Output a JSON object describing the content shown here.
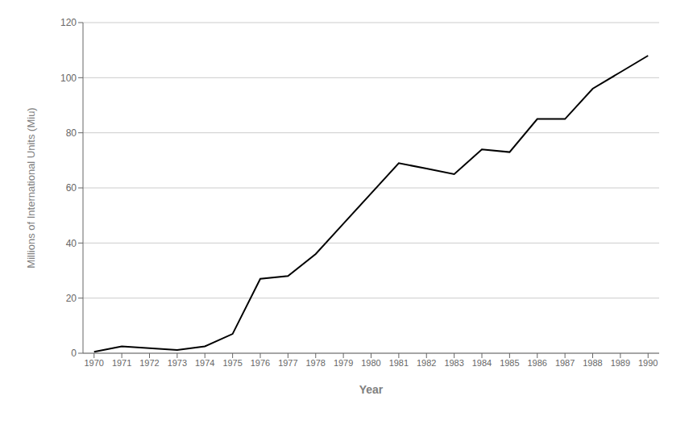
{
  "chart_data": {
    "type": "line",
    "x": [
      1970,
      1971,
      1972,
      1973,
      1974,
      1975,
      1976,
      1977,
      1978,
      1979,
      1980,
      1981,
      1982,
      1983,
      1984,
      1985,
      1986,
      1987,
      1988,
      1989,
      1990
    ],
    "values": [
      0.5,
      2.5,
      1.8,
      1.2,
      2.5,
      7,
      27,
      28,
      36,
      47,
      58,
      69,
      67,
      65,
      74,
      73,
      85,
      85,
      96,
      102,
      108
    ],
    "color": "#000000",
    "xlabel": "Year",
    "ylabel": "Millions of International Units (Miu)",
    "xlim": [
      1969.6,
      1990.4
    ],
    "xticks": [
      1970,
      1971,
      1972,
      1973,
      1974,
      1975,
      1976,
      1977,
      1978,
      1979,
      1980,
      1981,
      1982,
      1983,
      1984,
      1985,
      1986,
      1987,
      1988,
      1989,
      1990
    ],
    "ylim": [
      0,
      120
    ],
    "yticks": [
      0,
      20,
      40,
      60,
      80,
      100,
      120
    ],
    "grid": "y"
  }
}
